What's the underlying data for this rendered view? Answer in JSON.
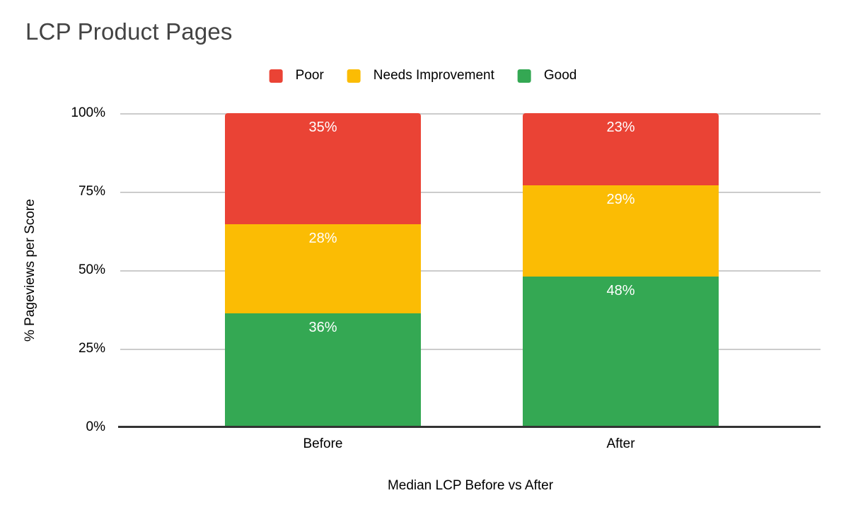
{
  "chart_data": {
    "type": "bar",
    "variant": "100-percent-stacked-column",
    "title": "LCP Product Pages",
    "xlabel": "Median LCP Before vs After",
    "ylabel": "% Pageviews per Score",
    "categories": [
      "Before",
      "After"
    ],
    "series": [
      {
        "name": "Poor",
        "color": "#EA4335",
        "values": [
          35,
          23
        ]
      },
      {
        "name": "Needs Improvement",
        "color": "#FBBC04",
        "values": [
          28,
          29
        ]
      },
      {
        "name": "Good",
        "color": "#34A853",
        "values": [
          36,
          48
        ]
      }
    ],
    "data_labels": {
      "Before": {
        "Poor": "35%",
        "Needs Improvement": "28%",
        "Good": "36%"
      },
      "After": {
        "Poor": "23%",
        "Needs Improvement": "29%",
        "Good": "48%"
      }
    },
    "y_ticks": [
      "100%",
      "75%",
      "50%",
      "25%",
      "0%"
    ],
    "ylim": [
      0,
      100
    ],
    "legend_position": "top",
    "grid": true,
    "colors": {
      "title_text": "#434343",
      "axis_text": "#000000",
      "gridline": "#cccccc",
      "axis_line": "#333333",
      "label_text": "#ffffff",
      "background": "#ffffff"
    }
  }
}
